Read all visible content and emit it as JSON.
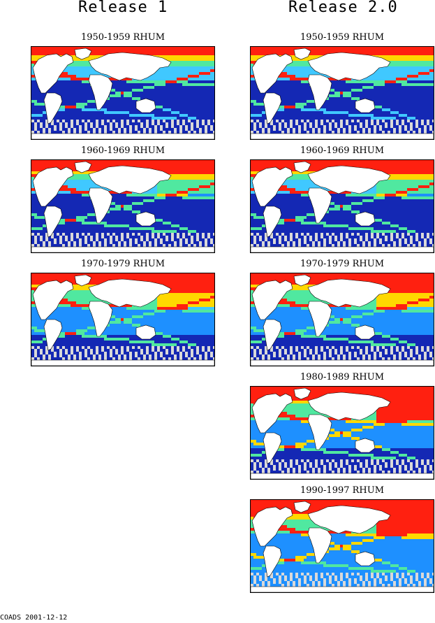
{
  "columns": [
    {
      "title": "Release 1",
      "panels": [
        {
          "title": "1950-1959 RHUM"
        },
        {
          "title": "1960-1969 RHUM"
        },
        {
          "title": "1970-1979 RHUM"
        }
      ]
    },
    {
      "title": "Release 2.0",
      "panels": [
        {
          "title": "1950-1959 RHUM"
        },
        {
          "title": "1960-1969 RHUM"
        },
        {
          "title": "1970-1979 RHUM"
        },
        {
          "title": "1980-1989 RHUM"
        },
        {
          "title": "1990-1997 RHUM"
        }
      ]
    }
  ],
  "footer": "COADS 2001-12-12",
  "colors": {
    "land": "#ffffff",
    "sparse": "#d9d9d9",
    "low": "#1428b4",
    "mid_low": "#1e90ff",
    "mid": "#40c8ff",
    "mid_high": "#50e8a0",
    "high": "#ffd800",
    "highest": "#ff2010",
    "coastline": "#000000"
  }
}
